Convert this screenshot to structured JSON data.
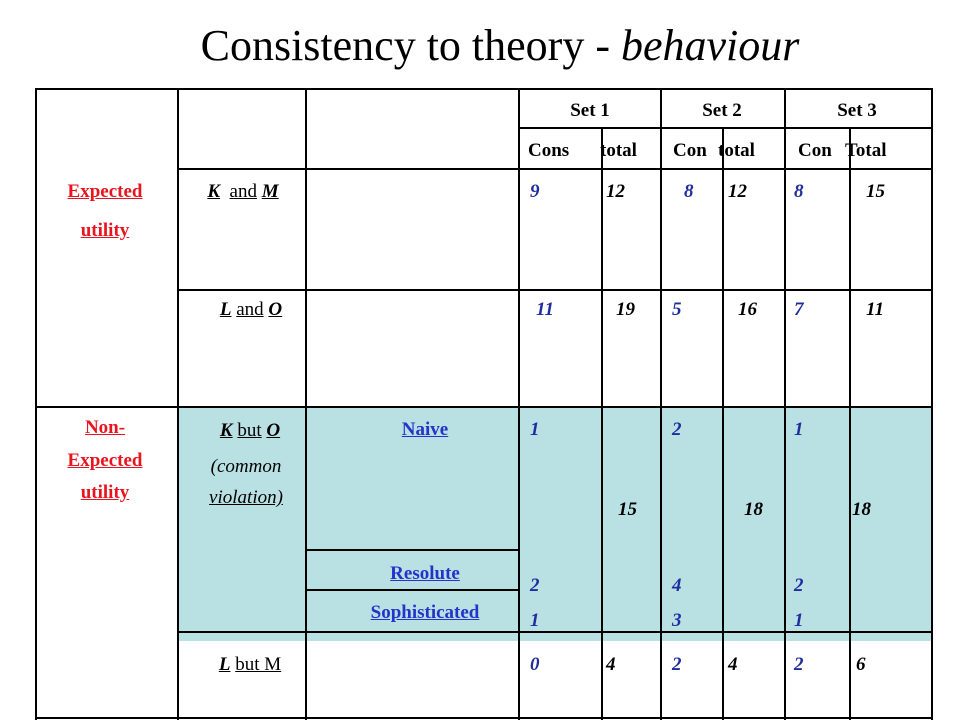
{
  "title": {
    "main": "Consistency to theory - ",
    "italic": "behaviour"
  },
  "headers": {
    "set1": "Set 1",
    "set2": "Set 2",
    "set3": "Set 3",
    "cons": "Cons",
    "total1": "total",
    "con2": "Con",
    "total2": "total",
    "con3": "Con",
    "total3": "Total"
  },
  "groups": {
    "expected_line1": "Expected",
    "expected_line2": "utility",
    "non_line1": "Non-",
    "non_line2": "Expected",
    "non_line3": "utility"
  },
  "rows": {
    "km": {
      "label_a": "K",
      "label_mid": "and",
      "label_b": "M",
      "v": [
        "9",
        "12",
        "8",
        "12",
        "8",
        "15"
      ]
    },
    "lo": {
      "label_a": "L",
      "label_mid": "and",
      "label_b": "O",
      "v": [
        "11",
        "19",
        "5",
        "16",
        "7",
        "11"
      ]
    },
    "kbo": {
      "label_a": "K",
      "label_mid": "but",
      "label_b": "O",
      "sub1": "(common",
      "sub2": "violation)"
    },
    "lbm": {
      "label_a": "L",
      "label_mid": "but M",
      "v": [
        "0",
        "4",
        "2",
        "4",
        "2",
        "6"
      ]
    }
  },
  "strategies": {
    "naive": "Naive",
    "resolute": "Resolute",
    "sophisticated": "Sophisticated"
  },
  "violation_values": {
    "naive": [
      "1",
      "2",
      "1"
    ],
    "resolute": [
      "2",
      "4",
      "2"
    ],
    "sophisticated": [
      "1",
      "3",
      "1"
    ],
    "totals": [
      "15",
      "18",
      "18"
    ]
  }
}
